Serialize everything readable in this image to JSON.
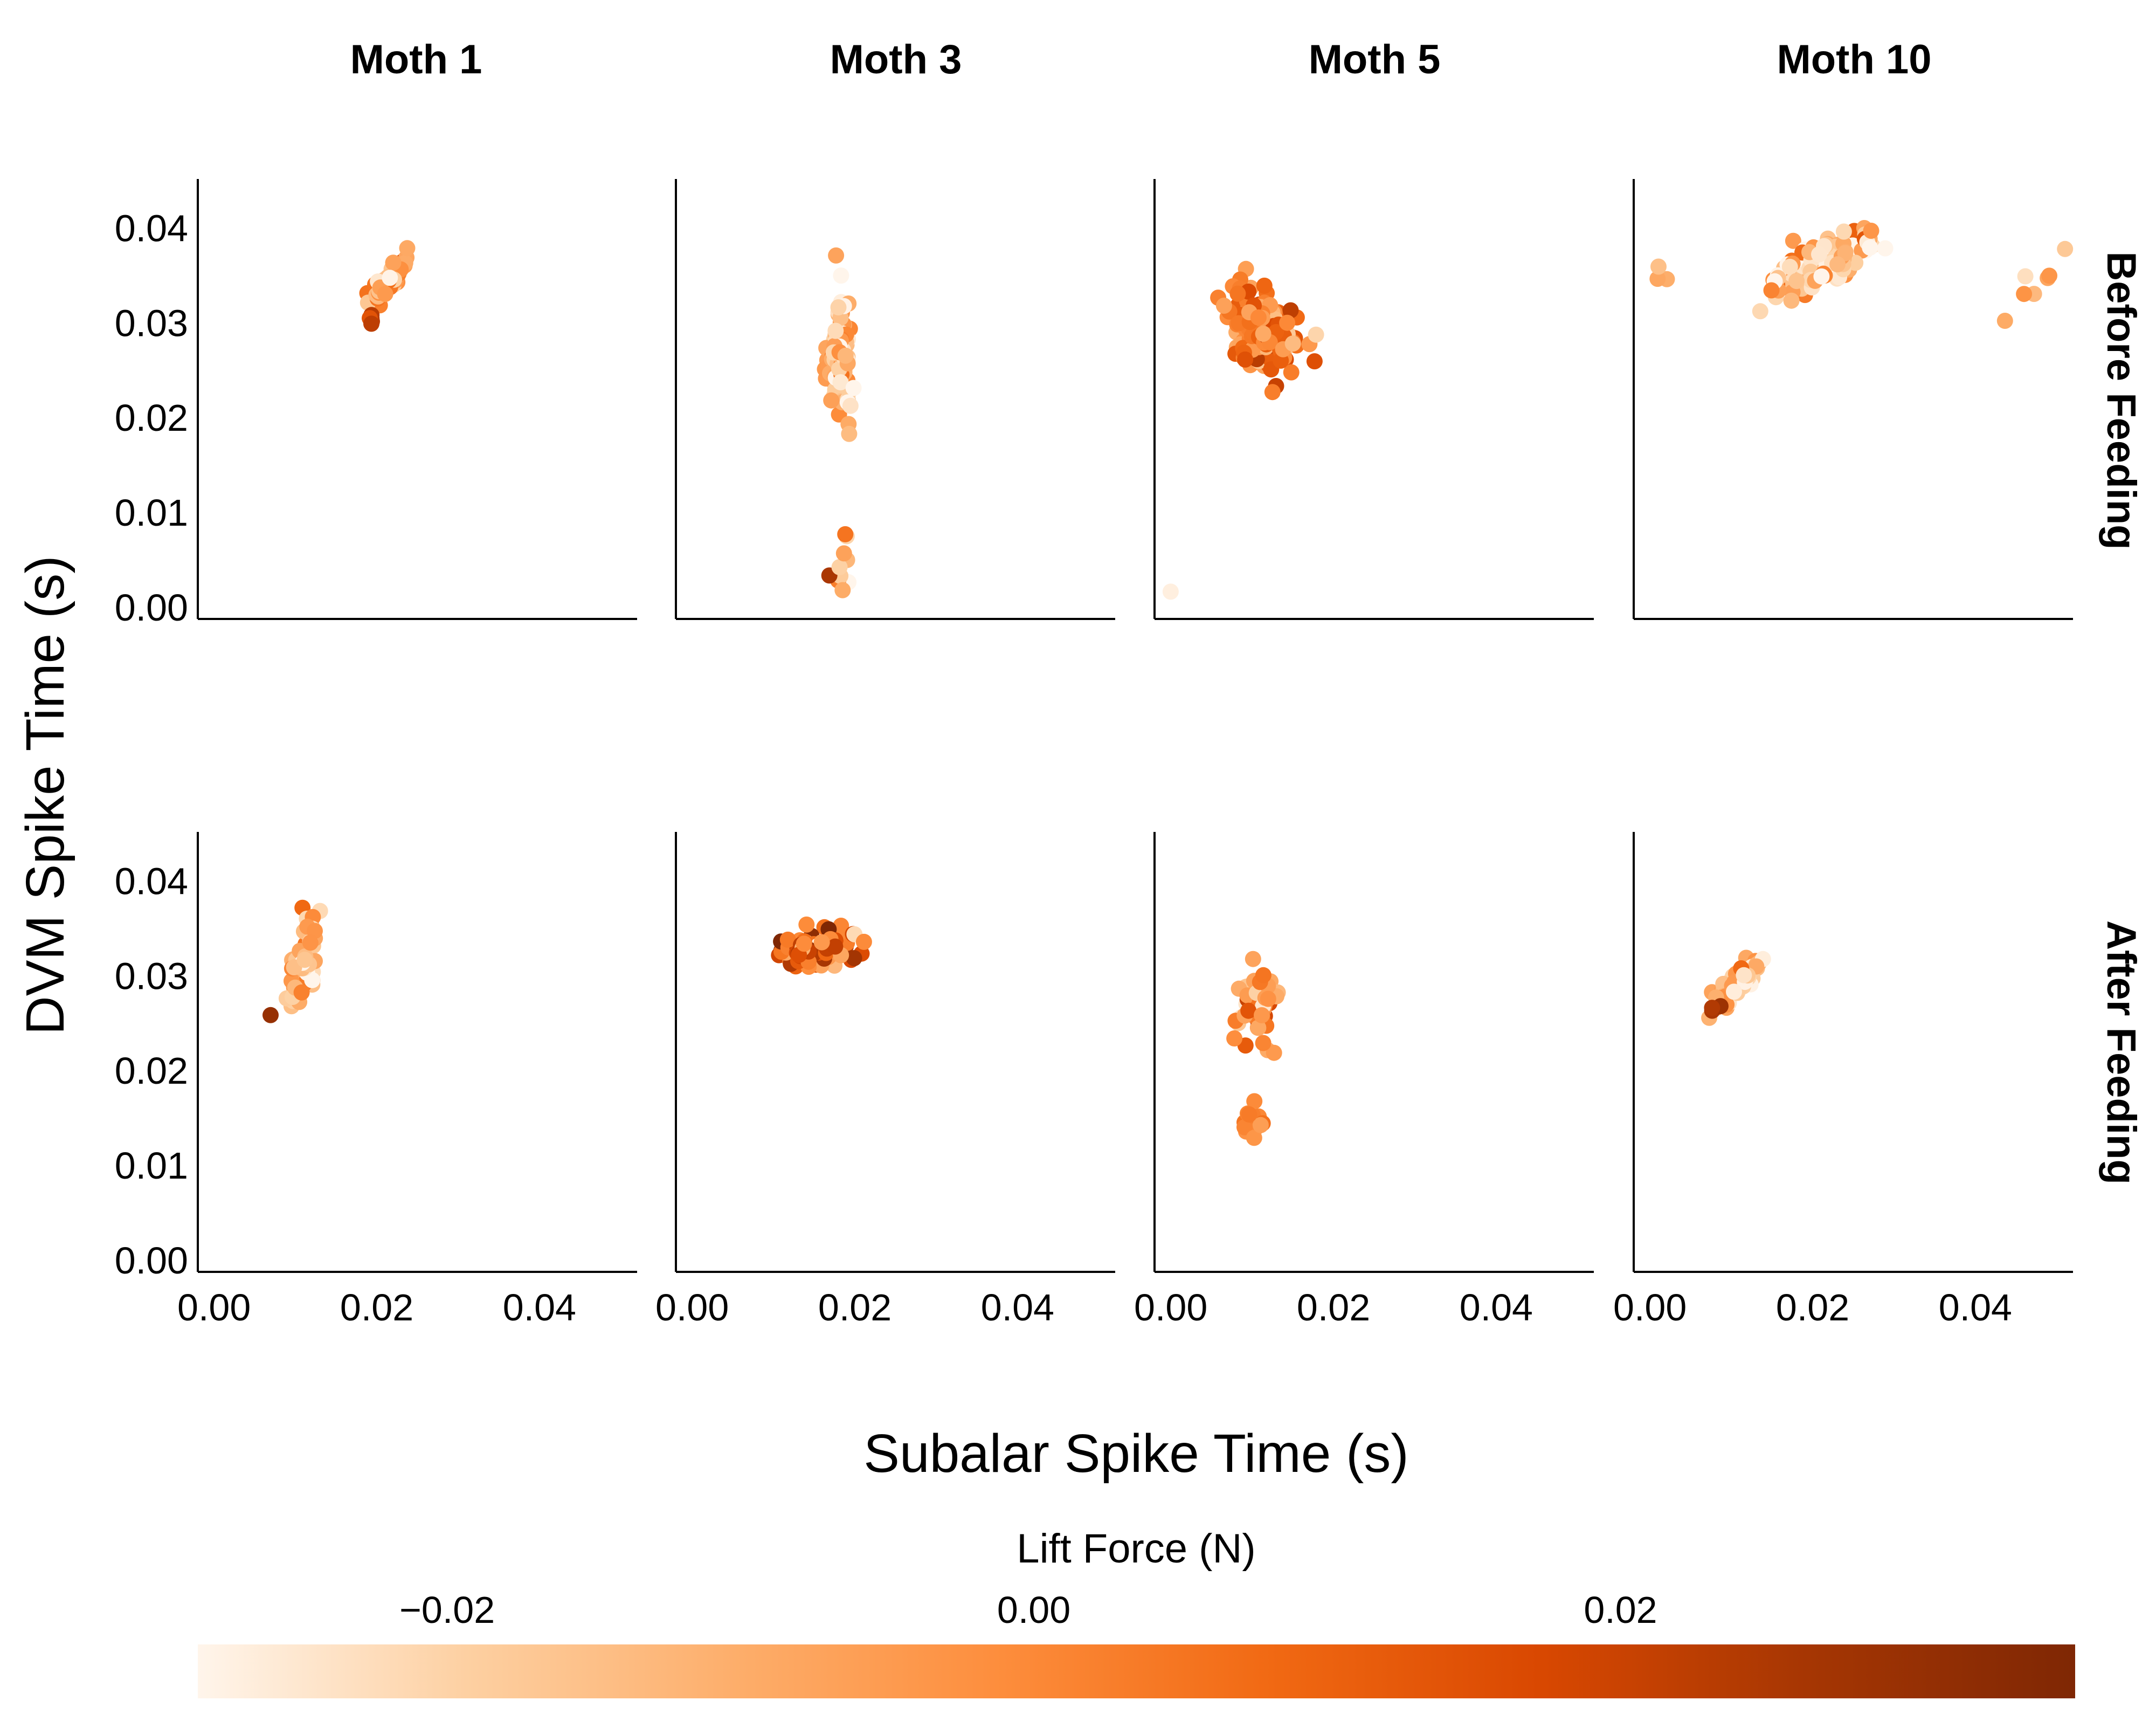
{
  "chart_data": {
    "type": "scatter",
    "title": "",
    "xlabel": "Subalar Spike Time (s)",
    "ylabel": "DVM Spike Time (s)",
    "xlim": [
      -0.002,
      0.052
    ],
    "ylim": [
      -0.0012,
      0.0452
    ],
    "x_ticks": [
      "0.00",
      "0.02",
      "0.04"
    ],
    "x_tick_values": [
      0.0,
      0.02,
      0.04
    ],
    "y_ticks": [
      "0.00",
      "0.01",
      "0.02",
      "0.03",
      "0.04"
    ],
    "y_tick_values": [
      0.0,
      0.01,
      0.02,
      0.03,
      0.04
    ],
    "columns": [
      "Moth 1",
      "Moth 3",
      "Moth 5",
      "Moth 10"
    ],
    "rows": [
      "Before Feeding",
      "After Feeding"
    ],
    "colorbar": {
      "title": "Lift Force (N)",
      "ticks": [
        "−0.02",
        "0.00",
        "0.02"
      ],
      "tick_values": [
        -0.02,
        0.0,
        0.02
      ],
      "range": [
        -0.0285,
        0.0355
      ],
      "colors": [
        "#fff5eb",
        "#fdd0a2",
        "#fdae6b",
        "#fd8d3c",
        "#f16913",
        "#d94801",
        "#a63603",
        "#7f2704"
      ]
    },
    "grid": false,
    "panels": [
      {
        "moth": "Moth 1",
        "condition": "Before Feeding",
        "clusters": [
          {
            "x": 0.0215,
            "y": 0.0345,
            "sx": 0.0011,
            "sy": 0.0013,
            "n": 70,
            "lift": -0.005,
            "liftSpread": 0.011,
            "corr": 0.85
          },
          {
            "x": 0.019,
            "y": 0.0305,
            "sx": 0.0004,
            "sy": 0.0004,
            "n": 5,
            "lift": 0.02,
            "liftSpread": 0.005,
            "corr": 0.0
          }
        ]
      },
      {
        "moth": "Moth 3",
        "condition": "Before Feeding",
        "clusters": [
          {
            "x": 0.0183,
            "y": 0.0265,
            "sx": 0.0007,
            "sy": 0.0033,
            "n": 110,
            "lift": -0.015,
            "liftSpread": 0.01,
            "corr": 0.0
          },
          {
            "x": 0.0183,
            "y": 0.004,
            "sx": 0.0006,
            "sy": 0.0018,
            "n": 12,
            "lift": -0.01,
            "liftSpread": 0.014,
            "corr": 0.0
          }
        ]
      },
      {
        "moth": "Moth 5",
        "condition": "Before Feeding",
        "clusters": [
          {
            "x": 0.0115,
            "y": 0.0292,
            "sx": 0.0021,
            "sy": 0.0022,
            "n": 180,
            "lift": 0.003,
            "liftSpread": 0.011,
            "corr": -0.2
          },
          {
            "x": 0.0,
            "y": 0.0017,
            "sx": 0.0001,
            "sy": 0.0001,
            "n": 1,
            "lift": -0.027,
            "liftSpread": 0.0,
            "corr": 0.0
          }
        ]
      },
      {
        "moth": "Moth 10",
        "condition": "Before Feeding",
        "clusters": [
          {
            "x": 0.0215,
            "y": 0.0365,
            "sx": 0.0032,
            "sy": 0.0018,
            "n": 130,
            "lift": -0.015,
            "liftSpread": 0.01,
            "corr": 0.7
          },
          {
            "x": 0.0015,
            "y": 0.036,
            "sx": 0.0005,
            "sy": 0.0014,
            "n": 3,
            "lift": -0.012,
            "liftSpread": 0.005,
            "corr": 0.0
          },
          {
            "x": 0.0465,
            "y": 0.0335,
            "sx": 0.0022,
            "sy": 0.0023,
            "n": 7,
            "lift": -0.015,
            "liftSpread": 0.008,
            "corr": 0.9
          }
        ]
      },
      {
        "moth": "Moth 1",
        "condition": "After Feeding",
        "clusters": [
          {
            "x": 0.011,
            "y": 0.0318,
            "sx": 0.0009,
            "sy": 0.0025,
            "n": 60,
            "lift": -0.012,
            "liftSpread": 0.011,
            "corr": 0.5
          },
          {
            "x": 0.0068,
            "y": 0.0258,
            "sx": 0.0001,
            "sy": 0.0001,
            "n": 1,
            "lift": 0.03,
            "liftSpread": 0.0,
            "corr": 0.0
          }
        ]
      },
      {
        "moth": "Moth 3",
        "condition": "After Feeding",
        "clusters": [
          {
            "x": 0.0152,
            "y": 0.0328,
            "sx": 0.0023,
            "sy": 0.0009,
            "n": 120,
            "lift": 0.008,
            "liftSpread": 0.013,
            "corr": 0.0
          }
        ]
      },
      {
        "moth": "Moth 5",
        "condition": "After Feeding",
        "clusters": [
          {
            "x": 0.0108,
            "y": 0.027,
            "sx": 0.0011,
            "sy": 0.0023,
            "n": 55,
            "lift": -0.002,
            "liftSpread": 0.01,
            "corr": 0.0
          },
          {
            "x": 0.0098,
            "y": 0.0145,
            "sx": 0.0008,
            "sy": 0.0011,
            "n": 14,
            "lift": 0.003,
            "liftSpread": 0.004,
            "corr": 0.0
          }
        ]
      },
      {
        "moth": "Moth 10",
        "condition": "After Feeding",
        "clusters": [
          {
            "x": 0.0105,
            "y": 0.0292,
            "sx": 0.0013,
            "sy": 0.0012,
            "n": 70,
            "lift": -0.01,
            "liftSpread": 0.011,
            "corr": 0.8
          },
          {
            "x": 0.0075,
            "y": 0.0265,
            "sx": 0.0005,
            "sy": 0.0003,
            "n": 3,
            "lift": 0.026,
            "liftSpread": 0.003,
            "corr": 0.0
          }
        ]
      }
    ]
  }
}
